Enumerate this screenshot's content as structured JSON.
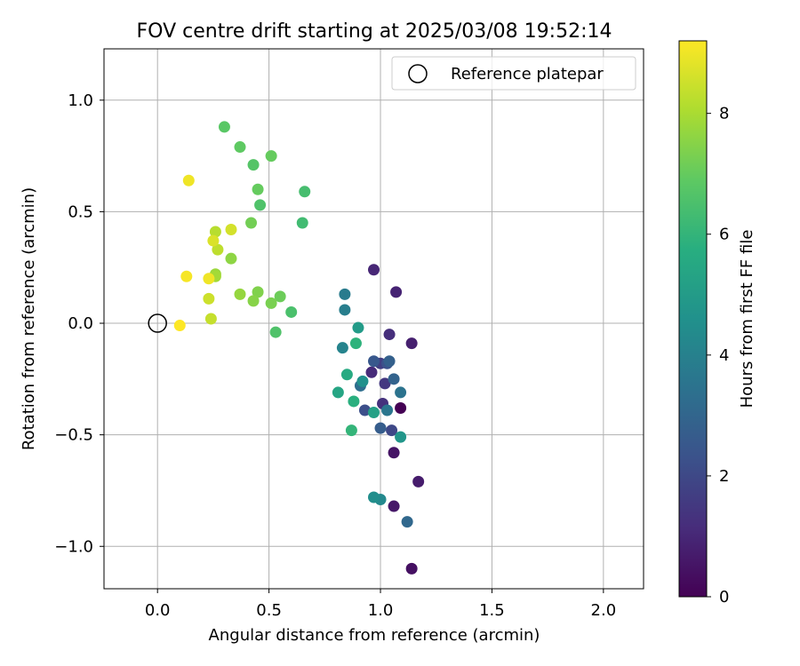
{
  "chart_data": {
    "type": "scatter",
    "title": "FOV centre drift starting at 2025/03/08 19:52:14",
    "xlabel": "Angular distance from reference (arcmin)",
    "ylabel": "Rotation from reference (arcmin)",
    "xlim": [
      -0.24,
      2.18
    ],
    "ylim": [
      -1.19,
      1.23
    ],
    "xticks": [
      0.0,
      0.5,
      1.0,
      1.5,
      2.0
    ],
    "xtick_labels": [
      "0.0",
      "0.5",
      "1.0",
      "1.5",
      "2.0"
    ],
    "yticks": [
      -1.0,
      -0.5,
      0.0,
      0.5,
      1.0
    ],
    "ytick_labels": [
      "−1.0",
      "−0.5",
      "0.0",
      "0.5",
      "1.0"
    ],
    "grid": true,
    "legend": {
      "position": "upper right",
      "entries": [
        {
          "label": "Reference platepar",
          "marker": "open-circle"
        }
      ]
    },
    "reference_point": {
      "x": 0.0,
      "y": 0.0
    },
    "colorbar": {
      "label": "Hours from first FF file",
      "range": [
        0,
        9.2
      ],
      "ticks": [
        0,
        2,
        4,
        6,
        8
      ],
      "tick_labels": [
        "0",
        "2",
        "4",
        "6",
        "8"
      ],
      "colormap": "viridis"
    },
    "points": [
      {
        "x": 1.09,
        "y": -0.38,
        "c": 0.0
      },
      {
        "x": 1.14,
        "y": -1.1,
        "c": 0.4
      },
      {
        "x": 1.06,
        "y": -0.58,
        "c": 0.5
      },
      {
        "x": 1.06,
        "y": -0.82,
        "c": 0.6
      },
      {
        "x": 1.17,
        "y": -0.71,
        "c": 0.7
      },
      {
        "x": 1.14,
        "y": -0.09,
        "c": 0.8
      },
      {
        "x": 1.07,
        "y": 0.14,
        "c": 0.9
      },
      {
        "x": 0.97,
        "y": 0.24,
        "c": 1.0
      },
      {
        "x": 0.96,
        "y": -0.22,
        "c": 1.1
      },
      {
        "x": 1.04,
        "y": -0.05,
        "c": 1.2
      },
      {
        "x": 1.01,
        "y": -0.36,
        "c": 1.3
      },
      {
        "x": 1.02,
        "y": -0.27,
        "c": 1.5
      },
      {
        "x": 1.0,
        "y": -0.18,
        "c": 1.7
      },
      {
        "x": 1.05,
        "y": -0.48,
        "c": 2.0
      },
      {
        "x": 0.93,
        "y": -0.39,
        "c": 2.2
      },
      {
        "x": 1.03,
        "y": -0.18,
        "c": 2.3
      },
      {
        "x": 0.97,
        "y": -0.17,
        "c": 2.5
      },
      {
        "x": 1.0,
        "y": -0.47,
        "c": 2.7
      },
      {
        "x": 1.04,
        "y": -0.17,
        "c": 2.8
      },
      {
        "x": 1.06,
        "y": -0.25,
        "c": 2.9
      },
      {
        "x": 1.12,
        "y": -0.89,
        "c": 3.1
      },
      {
        "x": 0.91,
        "y": -0.28,
        "c": 3.3
      },
      {
        "x": 1.09,
        "y": -0.31,
        "c": 3.5
      },
      {
        "x": 1.03,
        "y": -0.39,
        "c": 3.6
      },
      {
        "x": 0.84,
        "y": 0.13,
        "c": 3.8
      },
      {
        "x": 0.84,
        "y": 0.06,
        "c": 3.9
      },
      {
        "x": 0.83,
        "y": -0.11,
        "c": 4.1
      },
      {
        "x": 1.0,
        "y": -0.79,
        "c": 4.3
      },
      {
        "x": 0.97,
        "y": -0.78,
        "c": 4.5
      },
      {
        "x": 0.92,
        "y": -0.26,
        "c": 4.6
      },
      {
        "x": 1.09,
        "y": -0.51,
        "c": 4.8
      },
      {
        "x": 0.9,
        "y": -0.02,
        "c": 5.0
      },
      {
        "x": 0.97,
        "y": -0.4,
        "c": 5.2
      },
      {
        "x": 0.81,
        "y": -0.31,
        "c": 5.4
      },
      {
        "x": 0.85,
        "y": -0.23,
        "c": 5.6
      },
      {
        "x": 0.88,
        "y": -0.35,
        "c": 5.8
      },
      {
        "x": 0.89,
        "y": -0.09,
        "c": 5.9
      },
      {
        "x": 0.87,
        "y": -0.48,
        "c": 6.0
      },
      {
        "x": 0.65,
        "y": 0.45,
        "c": 6.3
      },
      {
        "x": 0.66,
        "y": 0.59,
        "c": 6.4
      },
      {
        "x": 0.6,
        "y": 0.05,
        "c": 6.5
      },
      {
        "x": 0.53,
        "y": -0.04,
        "c": 6.6
      },
      {
        "x": 0.46,
        "y": 0.53,
        "c": 6.6
      },
      {
        "x": 0.43,
        "y": 0.71,
        "c": 6.7
      },
      {
        "x": 0.3,
        "y": 0.88,
        "c": 6.8
      },
      {
        "x": 0.37,
        "y": 0.79,
        "c": 6.9
      },
      {
        "x": 0.51,
        "y": 0.75,
        "c": 7.0
      },
      {
        "x": 0.45,
        "y": 0.6,
        "c": 7.0
      },
      {
        "x": 0.55,
        "y": 0.12,
        "c": 7.1
      },
      {
        "x": 0.42,
        "y": 0.45,
        "c": 7.2
      },
      {
        "x": 0.51,
        "y": 0.09,
        "c": 7.3
      },
      {
        "x": 0.45,
        "y": 0.14,
        "c": 7.4
      },
      {
        "x": 0.43,
        "y": 0.1,
        "c": 7.5
      },
      {
        "x": 0.33,
        "y": 0.29,
        "c": 7.6
      },
      {
        "x": 0.37,
        "y": 0.13,
        "c": 7.7
      },
      {
        "x": 0.26,
        "y": 0.22,
        "c": 7.8
      },
      {
        "x": 0.26,
        "y": 0.21,
        "c": 7.9
      },
      {
        "x": 0.26,
        "y": 0.41,
        "c": 8.2
      },
      {
        "x": 0.27,
        "y": 0.33,
        "c": 8.3
      },
      {
        "x": 0.24,
        "y": 0.02,
        "c": 8.4
      },
      {
        "x": 0.23,
        "y": 0.11,
        "c": 8.5
      },
      {
        "x": 0.33,
        "y": 0.42,
        "c": 8.6
      },
      {
        "x": 0.25,
        "y": 0.37,
        "c": 8.7
      },
      {
        "x": 0.23,
        "y": 0.2,
        "c": 9.0
      },
      {
        "x": 0.14,
        "y": 0.64,
        "c": 9.0
      },
      {
        "x": 0.13,
        "y": 0.21,
        "c": 9.1
      },
      {
        "x": 0.1,
        "y": -0.01,
        "c": 9.2
      }
    ]
  }
}
